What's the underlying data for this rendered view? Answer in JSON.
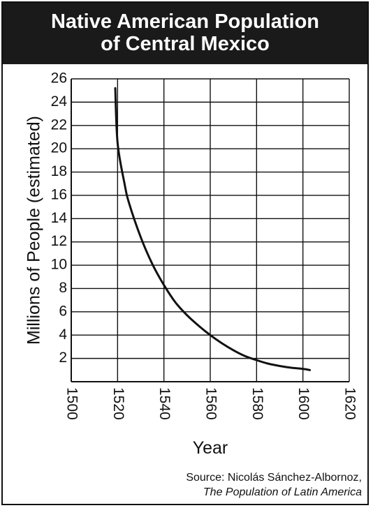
{
  "chart_data": {
    "type": "line",
    "title_line1": "Native American Population",
    "title_line2": "of Central Mexico",
    "xlabel": "Year",
    "ylabel": "Millions of People (estimated)",
    "xlim": [
      1500,
      1620
    ],
    "ylim": [
      0,
      26
    ],
    "x_ticks": [
      1500,
      1520,
      1540,
      1560,
      1580,
      1600,
      1620
    ],
    "y_ticks": [
      2,
      4,
      6,
      8,
      10,
      12,
      14,
      16,
      18,
      20,
      22,
      24,
      26
    ],
    "grid": true,
    "series": [
      {
        "x": [
          1519,
          1520,
          1523,
          1525,
          1530,
          1535,
          1540,
          1545,
          1550,
          1555,
          1560,
          1565,
          1570,
          1575,
          1580,
          1585,
          1590,
          1595,
          1600,
          1603
        ],
        "values": [
          25.2,
          20.5,
          17.0,
          15.3,
          12.4,
          10.1,
          8.3,
          6.8,
          5.7,
          4.8,
          4.0,
          3.3,
          2.7,
          2.2,
          1.85,
          1.55,
          1.35,
          1.2,
          1.1,
          1.0
        ]
      }
    ],
    "color": "#111111"
  },
  "source": {
    "line1": "Source: Nicolás Sánchez-Albornoz,",
    "line2": "The Population of Latin America"
  }
}
